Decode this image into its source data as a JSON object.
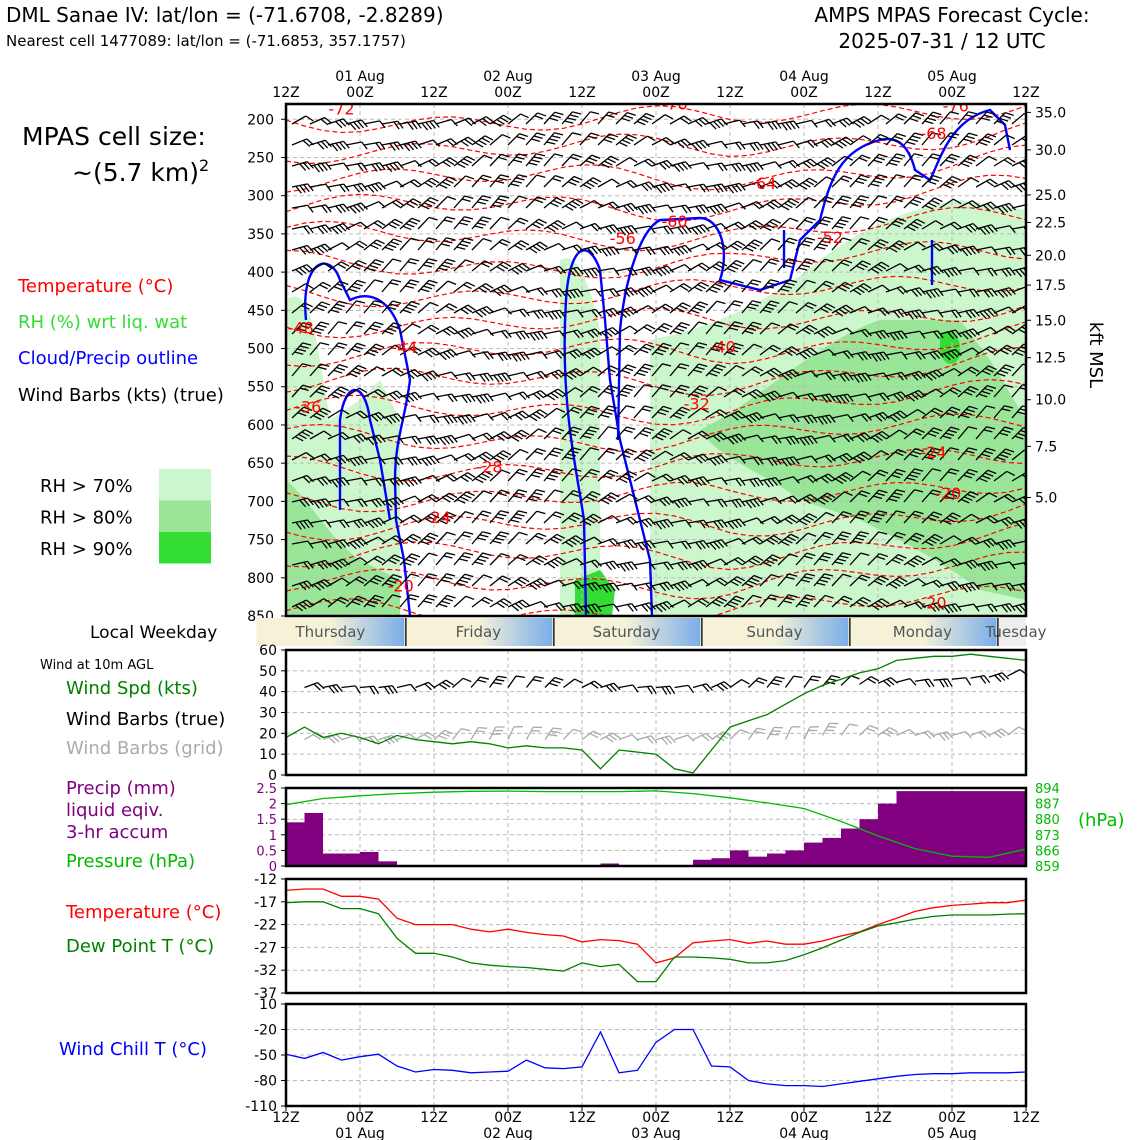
{
  "header": {
    "station_title": "DML Sanae IV: lat/lon = (-71.6708, -2.8289)",
    "nearest_cell": "Nearest cell 1477089: lat/lon = (-71.6853, 357.1757)",
    "cycle_line1": "AMPS MPAS Forecast Cycle:",
    "cycle_line2": "2025-07-31 / 12 UTC"
  },
  "side_legend": {
    "cell_size_line1": "MPAS cell size:",
    "cell_size_line2": "~(5.7 km)",
    "cell_size_sup": "2",
    "temperature": "Temperature (°C)",
    "rh": "RH (%) wrt liq. wat",
    "cloud": "Cloud/Precip outline",
    "wind": "Wind Barbs (kts) (true)",
    "rh_legend": [
      {
        "label": "RH > 70%",
        "color": "#ccf7cc"
      },
      {
        "label": "RH > 80%",
        "color": "#99e699"
      },
      {
        "label": "RH > 90%",
        "color": "#33dd33"
      }
    ]
  },
  "time_axis": {
    "hour_labels": [
      "12Z",
      "00Z",
      "12Z",
      "00Z",
      "12Z",
      "00Z",
      "12Z",
      "00Z",
      "12Z",
      "00Z",
      "12Z"
    ],
    "date_labels": [
      {
        "index": 1,
        "text": "01 Aug"
      },
      {
        "index": 3,
        "text": "02 Aug"
      },
      {
        "index": 5,
        "text": "03 Aug"
      },
      {
        "index": 7,
        "text": "04 Aug"
      },
      {
        "index": 9,
        "text": "05 Aug"
      }
    ]
  },
  "weekday_bar": {
    "label": "Local Weekday",
    "days": [
      "Thursday",
      "Friday",
      "Saturday",
      "Sunday",
      "Monday",
      "Tuesday"
    ]
  },
  "colors": {
    "temperature": "#ff0000",
    "rh_text": "#33dd33",
    "cloud": "#0000ff",
    "wind": "#000000",
    "wind_speed": "#008000",
    "grid_barbs": "#aaaaaa",
    "precip": "#800080",
    "pressure": "#00bb00",
    "dewpoint": "#008000",
    "wind_chill": "#0000ff"
  },
  "chart_data": [
    {
      "type": "line",
      "panel": "vertical-cross-section",
      "x": [
        0,
        1,
        2,
        3,
        4,
        5,
        6,
        7,
        8,
        9,
        10
      ],
      "yaxis_left": {
        "label": "",
        "ticks": [
          200,
          250,
          300,
          350,
          400,
          450,
          500,
          550,
          600,
          650,
          700,
          750,
          800,
          850
        ],
        "range": [
          850,
          180
        ]
      },
      "yaxis_right": {
        "label": "kft MSL",
        "ticks": [
          "35.0",
          "30.0",
          "25.0",
          "22.5",
          "20.0",
          "17.5",
          "15.0",
          "12.5",
          "10.0",
          "7.5",
          "5.0"
        ],
        "pressure_positions": [
          191,
          240,
          299,
          335,
          378,
          417,
          463,
          512,
          567,
          628,
          695
        ]
      },
      "temperature_labels": [
        {
          "x": 0.75,
          "p": 194,
          "text": "-72"
        },
        {
          "x": 5.25,
          "p": 187,
          "text": "-76"
        },
        {
          "x": 9.05,
          "p": 190,
          "text": "-76"
        },
        {
          "x": 8.75,
          "p": 226,
          "text": "-68"
        },
        {
          "x": 6.45,
          "p": 291,
          "text": "-64"
        },
        {
          "x": 5.25,
          "p": 341,
          "text": "-60"
        },
        {
          "x": 4.55,
          "p": 363,
          "text": "-56"
        },
        {
          "x": 7.35,
          "p": 362,
          "text": "-52"
        },
        {
          "x": 0.2,
          "p": 480,
          "text": "-48"
        },
        {
          "x": 1.6,
          "p": 506,
          "text": "-44"
        },
        {
          "x": 5.9,
          "p": 505,
          "text": "-40"
        },
        {
          "x": 0.3,
          "p": 584,
          "text": "-36"
        },
        {
          "x": 5.55,
          "p": 580,
          "text": "-32"
        },
        {
          "x": 2.75,
          "p": 662,
          "text": "-28"
        },
        {
          "x": 8.75,
          "p": 643,
          "text": "-24"
        },
        {
          "x": 2.05,
          "p": 728,
          "text": "-24"
        },
        {
          "x": 8.95,
          "p": 697,
          "text": "-20"
        },
        {
          "x": 1.55,
          "p": 818,
          "text": "-20"
        },
        {
          "x": 8.75,
          "p": 840,
          "text": "-20"
        }
      ]
    },
    {
      "type": "line",
      "panel": "wind-10m",
      "title": "Wind at 10m AGL",
      "ylabel": "",
      "ylim": [
        0,
        60
      ],
      "yticks": [
        0,
        10,
        20,
        30,
        40,
        50,
        60
      ],
      "series": [
        {
          "name": "Wind Spd (kts)",
          "x": [
            0,
            0.25,
            0.5,
            0.75,
            1,
            1.25,
            1.5,
            1.75,
            2,
            2.25,
            2.5,
            2.75,
            3,
            3.25,
            3.5,
            3.75,
            4,
            4.25,
            4.5,
            4.75,
            5,
            5.25,
            5.5,
            5.75,
            6,
            6.25,
            6.5,
            6.75,
            7,
            7.25,
            7.5,
            7.75,
            8,
            8.25,
            8.5,
            8.75,
            9,
            9.25,
            9.5,
            9.75,
            10
          ],
          "values": [
            18,
            23,
            18,
            20,
            18,
            15,
            19,
            17,
            16,
            15,
            16,
            15,
            13,
            14,
            13,
            13,
            12,
            3,
            12,
            11,
            10,
            3,
            1,
            12,
            23,
            26,
            29,
            34,
            39,
            43,
            46,
            49,
            51,
            55,
            56,
            57,
            57,
            58,
            57,
            56,
            55
          ]
        }
      ],
      "legend_extra": [
        "Wind Barbs (true)",
        "Wind Barbs (grid)"
      ]
    },
    {
      "type": "bar",
      "panel": "precip-pressure",
      "x_bins_start": [
        0,
        0.25,
        0.5,
        0.75,
        1,
        1.25,
        1.5,
        1.75,
        2,
        2.25,
        2.5,
        2.75,
        3,
        3.25,
        3.5,
        3.75,
        4,
        4.25,
        4.5,
        4.75,
        5,
        5.25,
        5.5,
        5.75,
        6,
        6.25,
        6.5,
        6.75,
        7,
        7.25,
        7.5,
        7.75,
        8,
        8.25,
        8.5,
        8.75,
        9,
        9.25,
        9.5,
        9.75
      ],
      "values": [
        1.4,
        1.7,
        0.4,
        0.4,
        0.45,
        0.15,
        0,
        0,
        0,
        0,
        0,
        0,
        0,
        0,
        0,
        0,
        0,
        0.08,
        0,
        0,
        0,
        0,
        0.2,
        0.25,
        0.5,
        0.3,
        0.4,
        0.5,
        0.75,
        0.9,
        1.2,
        1.5,
        2.0,
        2.4,
        2.4,
        2.4,
        2.4,
        2.4,
        2.4,
        2.4
      ],
      "ylabel_left": [
        "Precip (mm)",
        "liquid eqiv.",
        "3-hr accum"
      ],
      "ylim_left": [
        0,
        2.5
      ],
      "yticks_left": [
        0,
        0.5,
        1.0,
        1.5,
        2.0,
        2.5
      ],
      "series": [
        {
          "name": "Pressure (hPa)",
          "x": [
            0,
            0.5,
            1,
            1.5,
            2,
            2.5,
            3,
            3.5,
            4,
            4.5,
            5,
            5.5,
            6,
            6.5,
            7,
            7.5,
            8,
            8.5,
            9,
            9.5,
            10
          ],
          "values": [
            886.5,
            889.3,
            890.5,
            891.5,
            892.1,
            892.5,
            892.6,
            892.4,
            892.4,
            892.4,
            892.7,
            891.5,
            889.6,
            887.3,
            884.8,
            879.0,
            872.5,
            866.8,
            863.4,
            862.9,
            866.6
          ]
        }
      ],
      "ylabel_right": "(hPa)",
      "ylim_right": [
        859,
        894
      ],
      "yticks_right": [
        859,
        866,
        873,
        880,
        887,
        894
      ]
    },
    {
      "type": "line",
      "panel": "temperature-dewpoint",
      "ylim": [
        -37,
        -12
      ],
      "yticks": [
        -12,
        -17,
        -22,
        -27,
        -32,
        -37
      ],
      "series": [
        {
          "name": "Temperature (°C)",
          "x": [
            0,
            0.25,
            0.5,
            0.75,
            1,
            1.25,
            1.5,
            1.75,
            2,
            2.25,
            2.5,
            2.75,
            3,
            3.25,
            3.5,
            3.75,
            4,
            4.25,
            4.5,
            4.75,
            5,
            5.25,
            5.5,
            5.75,
            6,
            6.25,
            6.5,
            6.75,
            7,
            7.25,
            7.5,
            7.75,
            8,
            8.25,
            8.5,
            8.75,
            9,
            9.25,
            9.5,
            9.75,
            10
          ],
          "values": [
            -14.5,
            -14.2,
            -14.2,
            -15.8,
            -15.8,
            -16.4,
            -20.6,
            -22.0,
            -22.0,
            -22.0,
            -23.0,
            -23.6,
            -23.0,
            -23.7,
            -24.2,
            -24.5,
            -25.8,
            -25.3,
            -25.5,
            -26.3,
            -30.4,
            -29.3,
            -26.0,
            -25.6,
            -25.3,
            -26.1,
            -25.6,
            -26.3,
            -26.3,
            -25.6,
            -24.5,
            -23.6,
            -22.0,
            -20.6,
            -19.1,
            -18.3,
            -17.8,
            -17.5,
            -17.2,
            -17.2,
            -16.6
          ]
        },
        {
          "name": "Dew Point T (°C)",
          "x": [
            0,
            0.25,
            0.5,
            0.75,
            1,
            1.25,
            1.5,
            1.75,
            2,
            2.25,
            2.5,
            2.75,
            3,
            3.25,
            3.5,
            3.75,
            4,
            4.25,
            4.5,
            4.75,
            5,
            5.25,
            5.5,
            5.75,
            6,
            6.25,
            6.5,
            6.75,
            7,
            7.25,
            7.5,
            7.75,
            8,
            8.25,
            8.5,
            8.75,
            9,
            9.25,
            9.5,
            9.75,
            10
          ],
          "values": [
            -17.2,
            -17.0,
            -17.0,
            -18.5,
            -18.5,
            -19.6,
            -25.0,
            -28.3,
            -28.3,
            -29.1,
            -30.4,
            -30.9,
            -31.2,
            -31.4,
            -31.8,
            -32.2,
            -30.4,
            -31.2,
            -30.7,
            -34.5,
            -34.5,
            -29.1,
            -29.1,
            -29.3,
            -29.6,
            -30.4,
            -30.4,
            -29.9,
            -28.6,
            -27.1,
            -25.4,
            -23.7,
            -22.3,
            -21.6,
            -20.8,
            -20.2,
            -19.9,
            -19.9,
            -19.9,
            -19.7,
            -19.6
          ]
        }
      ]
    },
    {
      "type": "line",
      "panel": "wind-chill",
      "ylim": [
        -110,
        10
      ],
      "yticks": [
        10,
        -20,
        -50,
        -80,
        -110
      ],
      "series": [
        {
          "name": "Wind Chill T (°C)",
          "x": [
            0,
            0.25,
            0.5,
            0.75,
            1,
            1.25,
            1.5,
            1.75,
            2,
            2.25,
            2.5,
            2.75,
            3,
            3.25,
            3.5,
            3.75,
            4,
            4.25,
            4.5,
            4.75,
            5,
            5.25,
            5.5,
            5.75,
            6,
            6.25,
            6.5,
            6.75,
            7,
            7.25,
            7.5,
            7.75,
            8,
            8.25,
            8.5,
            8.75,
            9,
            9.25,
            9.5,
            9.75,
            10
          ],
          "values": [
            -49,
            -54,
            -47,
            -56,
            -52,
            -49,
            -63,
            -70,
            -67,
            -68,
            -71,
            -70,
            -69,
            -56,
            -65,
            -66,
            -64,
            -23,
            -71,
            -68,
            -35,
            -20,
            -20,
            -63,
            -64,
            -80,
            -84,
            -86,
            -86,
            -87,
            -84,
            -81,
            -78,
            -75,
            -73,
            -72,
            -72,
            -71,
            -71,
            -71,
            -70
          ]
        }
      ]
    }
  ]
}
